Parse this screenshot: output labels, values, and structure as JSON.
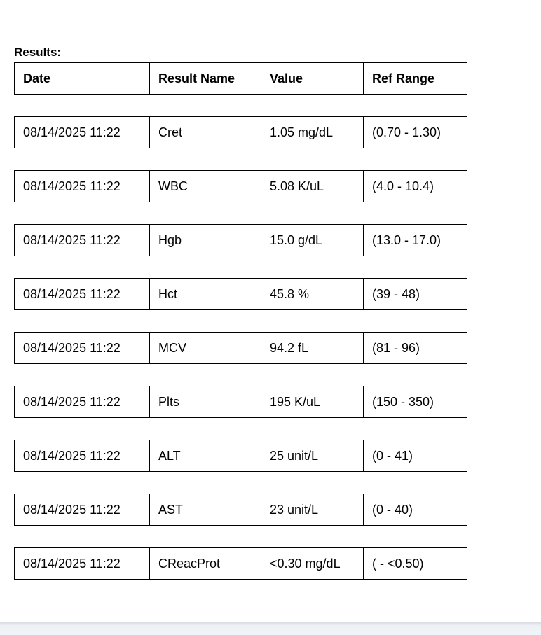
{
  "title": "Results:",
  "columns": [
    "Date",
    "Result Name",
    "Value",
    "Ref Range"
  ],
  "rows": [
    [
      "08/14/2025 11:22",
      "Cret",
      "1.05 mg/dL",
      "(0.70 - 1.30)"
    ],
    [
      "08/14/2025 11:22",
      "WBC",
      "5.08 K/uL",
      "(4.0 - 10.4)"
    ],
    [
      "08/14/2025 11:22",
      "Hgb",
      "15.0 g/dL",
      "(13.0 - 17.0)"
    ],
    [
      "08/14/2025 11:22",
      "Hct",
      "45.8 %",
      "(39 - 48)"
    ],
    [
      "08/14/2025 11:22",
      "MCV",
      "94.2 fL",
      "(81 - 96)"
    ],
    [
      "08/14/2025 11:22",
      "Plts",
      "195 K/uL",
      "(150 - 350)"
    ],
    [
      "08/14/2025 11:22",
      "ALT",
      "25 unit/L",
      "(0 - 41)"
    ],
    [
      "08/14/2025 11:22",
      "AST",
      "23 unit/L",
      "(0 - 40)"
    ],
    [
      "08/14/2025 11:22",
      "CReacProt",
      "<0.30 mg/dL",
      "( - <0.50)"
    ]
  ]
}
